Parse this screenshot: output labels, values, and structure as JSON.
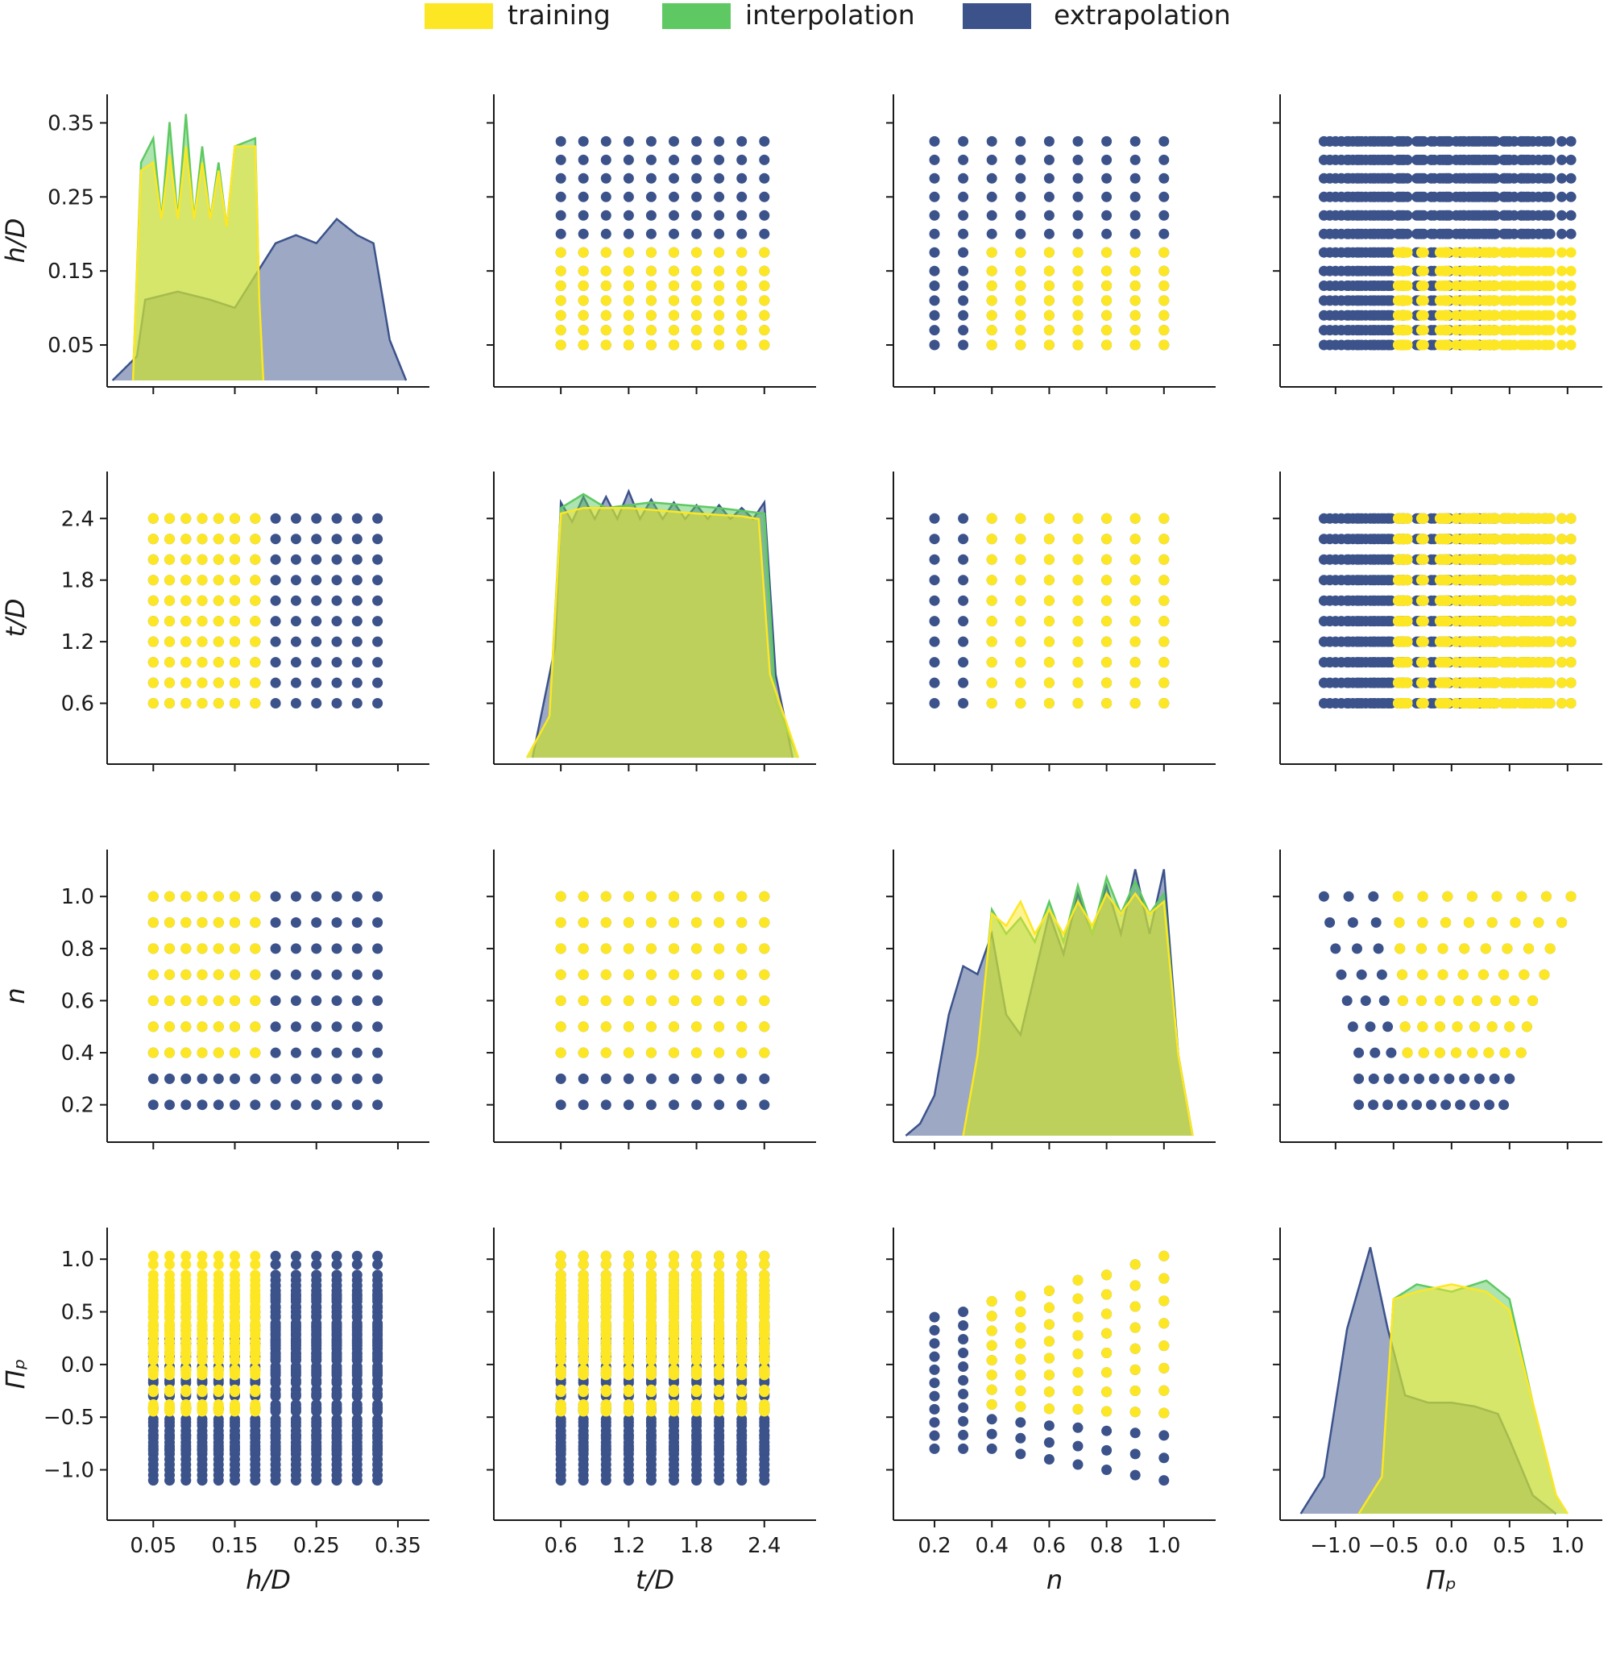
{
  "chart_data": {
    "type": "pairplot",
    "variables": [
      {
        "key": "hD",
        "label": "h/D",
        "ticks": [
          0.05,
          0.15,
          0.25,
          0.35
        ],
        "tick_labels": [
          "0.05",
          "0.15",
          "0.25",
          "0.35"
        ],
        "range": [
          -0.0066,
          0.3886
        ]
      },
      {
        "key": "tD",
        "label": "t/D",
        "ticks": [
          0.6,
          1.2,
          1.8,
          2.4
        ],
        "tick_labels": [
          "0.6",
          "1.2",
          "1.8",
          "2.4"
        ],
        "range": [
          0.0075,
          2.8575
        ]
      },
      {
        "key": "n",
        "label": "n",
        "ticks": [
          0.2,
          0.4,
          0.6,
          0.8,
          1.0
        ],
        "tick_labels": [
          "0.2",
          "0.4",
          "0.6",
          "0.8",
          "1.0"
        ],
        "range": [
          0.0566,
          1.1803
        ]
      },
      {
        "key": "Pi",
        "label": "Π_p",
        "ticks": [
          -1.0,
          -0.5,
          0.0,
          0.5,
          1.0
        ],
        "tick_labels": [
          "−1.0",
          "−0.5",
          "0.0",
          "0.5",
          "1.0"
        ],
        "range": [
          -1.478,
          1.3
        ]
      }
    ],
    "y_tick_labels": {
      "hD": [
        "0.05",
        "0.15",
        "0.25",
        "0.35"
      ],
      "tD": [
        "0.6",
        "1.2",
        "1.8",
        "2.4"
      ],
      "n": [
        "0.2",
        "0.4",
        "0.6",
        "0.8",
        "1.0"
      ],
      "Pi": [
        "−1.0",
        "−0.5",
        "0.0",
        "0.5",
        "1.0"
      ]
    },
    "grid_values": {
      "hD": [
        0.05,
        0.07,
        0.09,
        0.11,
        0.13,
        0.15,
        0.175,
        0.2,
        0.225,
        0.25,
        0.275,
        0.3,
        0.325
      ],
      "tD": [
        0.6,
        0.8,
        1.0,
        1.2,
        1.4,
        1.6,
        1.8,
        2.0,
        2.2,
        2.4
      ],
      "n": [
        0.2,
        0.3,
        0.4,
        0.5,
        0.6,
        0.7,
        0.8,
        0.9,
        1.0
      ]
    },
    "pi_range_by_n": [
      {
        "n": 0.2,
        "min": -0.8,
        "max": 0.45
      },
      {
        "n": 0.3,
        "min": -0.8,
        "max": 0.5
      },
      {
        "n": 0.4,
        "min": -0.8,
        "max": 0.6
      },
      {
        "n": 0.5,
        "min": -0.85,
        "max": 0.65
      },
      {
        "n": 0.6,
        "min": -0.9,
        "max": 0.7
      },
      {
        "n": 0.7,
        "min": -0.95,
        "max": 0.8
      },
      {
        "n": 0.8,
        "min": -1.0,
        "max": 0.85
      },
      {
        "n": 0.9,
        "min": -1.05,
        "max": 0.95
      },
      {
        "n": 1.0,
        "min": -1.1,
        "max": 1.03
      }
    ],
    "split_rule": "training/interpolation: h/D ≤ 0.175, n ≥ 0.4, Π_p ≥ -0.5; extrapolation otherwise",
    "series": [
      {
        "name": "training",
        "color": "#fde725"
      },
      {
        "name": "interpolation",
        "color": "#5ec962"
      },
      {
        "name": "extrapolation",
        "color": "#3b528b"
      }
    ],
    "density_curves": {
      "hD": {
        "training": [
          [
            0.025,
            0
          ],
          [
            0.035,
            0.26
          ],
          [
            0.05,
            0.27
          ],
          [
            0.06,
            0.2
          ],
          [
            0.07,
            0.28
          ],
          [
            0.08,
            0.2
          ],
          [
            0.09,
            0.29
          ],
          [
            0.1,
            0.2
          ],
          [
            0.11,
            0.27
          ],
          [
            0.12,
            0.2
          ],
          [
            0.13,
            0.26
          ],
          [
            0.14,
            0.19
          ],
          [
            0.15,
            0.29
          ],
          [
            0.175,
            0.29
          ],
          [
            0.18,
            0.1
          ],
          [
            0.185,
            0
          ]
        ],
        "interpolation": [
          [
            0.025,
            0
          ],
          [
            0.035,
            0.27
          ],
          [
            0.05,
            0.3
          ],
          [
            0.06,
            0.2
          ],
          [
            0.07,
            0.32
          ],
          [
            0.08,
            0.2
          ],
          [
            0.09,
            0.33
          ],
          [
            0.1,
            0.2
          ],
          [
            0.11,
            0.29
          ],
          [
            0.12,
            0.2
          ],
          [
            0.13,
            0.27
          ],
          [
            0.14,
            0.19
          ],
          [
            0.15,
            0.29
          ],
          [
            0.175,
            0.3
          ],
          [
            0.18,
            0.1
          ],
          [
            0.185,
            0
          ]
        ],
        "extrapolation": [
          [
            0.0,
            0
          ],
          [
            0.03,
            0.03
          ],
          [
            0.04,
            0.1
          ],
          [
            0.08,
            0.11
          ],
          [
            0.12,
            0.1
          ],
          [
            0.15,
            0.09
          ],
          [
            0.2,
            0.17
          ],
          [
            0.225,
            0.18
          ],
          [
            0.25,
            0.17
          ],
          [
            0.275,
            0.2
          ],
          [
            0.3,
            0.18
          ],
          [
            0.32,
            0.17
          ],
          [
            0.34,
            0.05
          ],
          [
            0.36,
            0
          ]
        ]
      },
      "tD": {
        "training": [
          [
            0.3,
            0
          ],
          [
            0.5,
            0.15
          ],
          [
            0.6,
            0.88
          ],
          [
            0.8,
            0.9
          ],
          [
            1.2,
            0.9
          ],
          [
            1.8,
            0.88
          ],
          [
            2.2,
            0.87
          ],
          [
            2.35,
            0.86
          ],
          [
            2.45,
            0.3
          ],
          [
            2.7,
            0
          ]
        ],
        "interpolation": [
          [
            0.3,
            0
          ],
          [
            0.5,
            0.15
          ],
          [
            0.6,
            0.9
          ],
          [
            0.8,
            0.95
          ],
          [
            1.0,
            0.9
          ],
          [
            1.4,
            0.92
          ],
          [
            2.0,
            0.9
          ],
          [
            2.4,
            0.88
          ],
          [
            2.5,
            0.2
          ],
          [
            2.7,
            0
          ]
        ],
        "extrapolation": [
          [
            0.35,
            0
          ],
          [
            0.55,
            0.4
          ],
          [
            0.6,
            0.92
          ],
          [
            0.7,
            0.85
          ],
          [
            0.8,
            0.94
          ],
          [
            0.9,
            0.86
          ],
          [
            1.0,
            0.94
          ],
          [
            1.1,
            0.86
          ],
          [
            1.2,
            0.96
          ],
          [
            1.3,
            0.86
          ],
          [
            1.4,
            0.93
          ],
          [
            1.5,
            0.86
          ],
          [
            1.6,
            0.92
          ],
          [
            1.7,
            0.86
          ],
          [
            1.8,
            0.91
          ],
          [
            1.9,
            0.86
          ],
          [
            2.0,
            0.91
          ],
          [
            2.1,
            0.86
          ],
          [
            2.2,
            0.9
          ],
          [
            2.3,
            0.86
          ],
          [
            2.4,
            0.92
          ],
          [
            2.5,
            0.3
          ],
          [
            2.65,
            0
          ]
        ]
      },
      "n": {
        "training": [
          [
            0.3,
            0
          ],
          [
            0.35,
            0.2
          ],
          [
            0.4,
            0.55
          ],
          [
            0.45,
            0.52
          ],
          [
            0.5,
            0.58
          ],
          [
            0.55,
            0.5
          ],
          [
            0.6,
            0.56
          ],
          [
            0.65,
            0.5
          ],
          [
            0.7,
            0.58
          ],
          [
            0.75,
            0.52
          ],
          [
            0.8,
            0.6
          ],
          [
            0.85,
            0.55
          ],
          [
            0.9,
            0.6
          ],
          [
            0.95,
            0.55
          ],
          [
            1.0,
            0.58
          ],
          [
            1.05,
            0.2
          ],
          [
            1.1,
            0
          ]
        ],
        "interpolation": [
          [
            0.3,
            0
          ],
          [
            0.35,
            0.2
          ],
          [
            0.4,
            0.56
          ],
          [
            0.45,
            0.5
          ],
          [
            0.5,
            0.54
          ],
          [
            0.55,
            0.48
          ],
          [
            0.6,
            0.58
          ],
          [
            0.65,
            0.48
          ],
          [
            0.7,
            0.62
          ],
          [
            0.75,
            0.5
          ],
          [
            0.8,
            0.64
          ],
          [
            0.85,
            0.55
          ],
          [
            0.9,
            0.63
          ],
          [
            0.95,
            0.55
          ],
          [
            1.0,
            0.6
          ],
          [
            1.05,
            0.2
          ],
          [
            1.1,
            0
          ]
        ],
        "extrapolation": [
          [
            0.1,
            0
          ],
          [
            0.15,
            0.03
          ],
          [
            0.2,
            0.1
          ],
          [
            0.25,
            0.3
          ],
          [
            0.3,
            0.42
          ],
          [
            0.35,
            0.4
          ],
          [
            0.4,
            0.5
          ],
          [
            0.45,
            0.3
          ],
          [
            0.5,
            0.25
          ],
          [
            0.55,
            0.4
          ],
          [
            0.6,
            0.55
          ],
          [
            0.65,
            0.45
          ],
          [
            0.7,
            0.6
          ],
          [
            0.75,
            0.5
          ],
          [
            0.8,
            0.62
          ],
          [
            0.85,
            0.5
          ],
          [
            0.9,
            0.66
          ],
          [
            0.95,
            0.5
          ],
          [
            1.0,
            0.66
          ],
          [
            1.05,
            0.2
          ],
          [
            1.1,
            0
          ]
        ]
      },
      "Pi": {
        "training": [
          [
            -0.8,
            0
          ],
          [
            -0.6,
            0.1
          ],
          [
            -0.5,
            0.58
          ],
          [
            -0.3,
            0.6
          ],
          [
            0.0,
            0.62
          ],
          [
            0.3,
            0.6
          ],
          [
            0.5,
            0.55
          ],
          [
            0.7,
            0.3
          ],
          [
            0.9,
            0.05
          ],
          [
            1.0,
            0
          ]
        ],
        "interpolation": [
          [
            -0.8,
            0
          ],
          [
            -0.6,
            0.1
          ],
          [
            -0.5,
            0.58
          ],
          [
            -0.3,
            0.62
          ],
          [
            0.0,
            0.6
          ],
          [
            0.3,
            0.63
          ],
          [
            0.5,
            0.58
          ],
          [
            0.7,
            0.3
          ],
          [
            0.9,
            0.05
          ],
          [
            1.0,
            0
          ]
        ],
        "extrapolation": [
          [
            -1.3,
            0
          ],
          [
            -1.1,
            0.1
          ],
          [
            -0.9,
            0.5
          ],
          [
            -0.7,
            0.72
          ],
          [
            -0.55,
            0.5
          ],
          [
            -0.4,
            0.32
          ],
          [
            -0.2,
            0.3
          ],
          [
            0.0,
            0.3
          ],
          [
            0.2,
            0.29
          ],
          [
            0.4,
            0.27
          ],
          [
            0.5,
            0.2
          ],
          [
            0.7,
            0.05
          ],
          [
            0.9,
            0
          ]
        ]
      }
    }
  }
}
